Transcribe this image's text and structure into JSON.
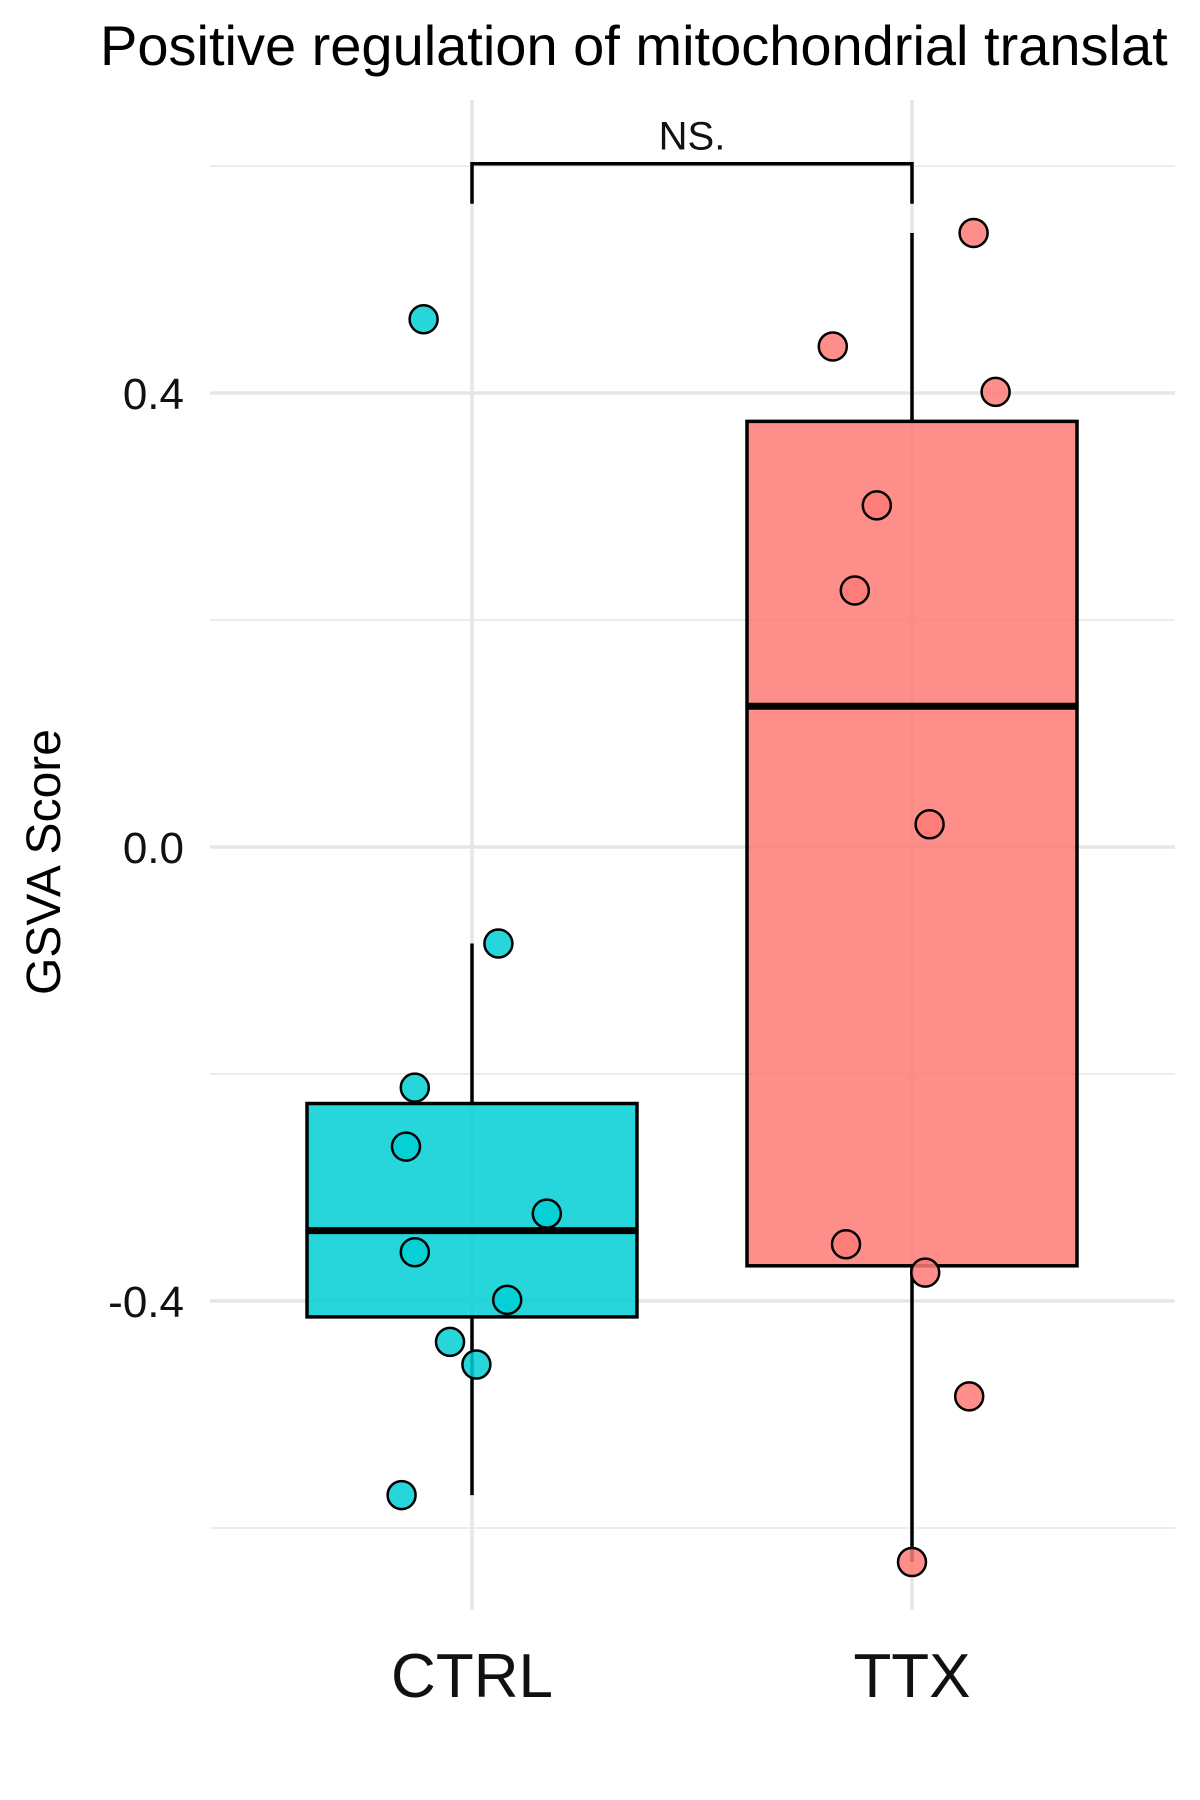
{
  "chart_data": {
    "type": "box",
    "title": "Positive regulation of mitochondrial translat",
    "xlabel": "",
    "ylabel": "GSVA Score",
    "ylim": [
      -0.68,
      0.62
    ],
    "yticks": [
      -0.4,
      0.0,
      0.4
    ],
    "ytick_labels": [
      "-0.4",
      "0.0",
      "0.4"
    ],
    "grid": true,
    "groups": [
      {
        "name": "CTRL",
        "color": "#00CFD5",
        "box": {
          "q1": -0.414,
          "median": -0.338,
          "q3": -0.226,
          "whisker_low": -0.571,
          "whisker_high": -0.085
        },
        "points": [
          {
            "jitter": -0.11,
            "y": 0.465
          },
          {
            "jitter": 0.06,
            "y": -0.085
          },
          {
            "jitter": -0.13,
            "y": -0.212
          },
          {
            "jitter": -0.15,
            "y": -0.264
          },
          {
            "jitter": 0.17,
            "y": -0.323
          },
          {
            "jitter": -0.13,
            "y": -0.357
          },
          {
            "jitter": 0.08,
            "y": -0.399
          },
          {
            "jitter": -0.05,
            "y": -0.436
          },
          {
            "jitter": 0.01,
            "y": -0.456
          },
          {
            "jitter": -0.16,
            "y": -0.571
          }
        ]
      },
      {
        "name": "TTX",
        "color": "#FD7A75",
        "box": {
          "q1": -0.369,
          "median": 0.124,
          "q3": 0.375,
          "whisker_low": -0.63,
          "whisker_high": 0.541
        },
        "points": [
          {
            "jitter": 0.14,
            "y": 0.541
          },
          {
            "jitter": -0.18,
            "y": 0.441
          },
          {
            "jitter": 0.19,
            "y": 0.401
          },
          {
            "jitter": -0.08,
            "y": 0.301
          },
          {
            "jitter": -0.13,
            "y": 0.226
          },
          {
            "jitter": 0.04,
            "y": 0.02
          },
          {
            "jitter": -0.15,
            "y": -0.35
          },
          {
            "jitter": 0.03,
            "y": -0.375
          },
          {
            "jitter": 0.13,
            "y": -0.484
          },
          {
            "jitter": 0.0,
            "y": -0.63
          }
        ]
      }
    ],
    "comparison": {
      "from": "CTRL",
      "to": "TTX",
      "label": "NS.",
      "y": 0.602
    }
  }
}
